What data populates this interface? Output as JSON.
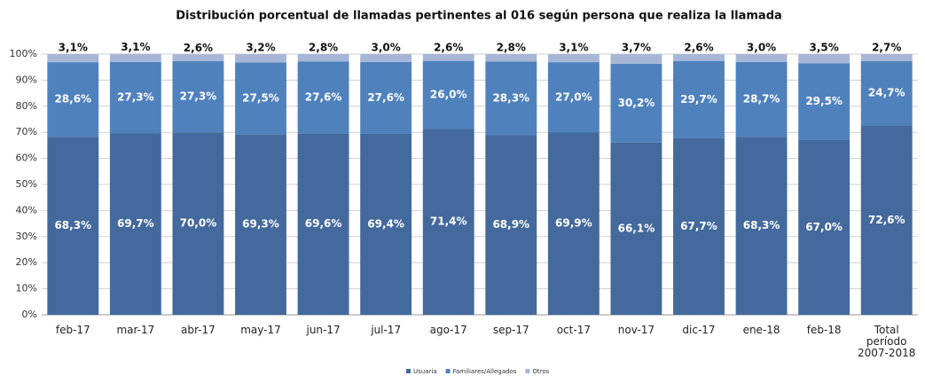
{
  "chart_data": {
    "type": "stacked_bar",
    "title": "Distribución porcentual de llamadas  pertinentes al 016 según persona que  realiza la llamada",
    "categories": [
      "feb-17",
      "mar-17",
      "abr-17",
      "may-17",
      "jun-17",
      "jul-17",
      "ago-17",
      "sep-17",
      "oct-17",
      "nov-17",
      "dic-17",
      "ene-18",
      "feb-18",
      "Total período 2007-2018"
    ],
    "series": [
      {
        "name": "Usuaria",
        "color": "#44699c",
        "values": [
          68.3,
          69.7,
          70.0,
          69.3,
          69.6,
          69.4,
          71.4,
          68.9,
          69.9,
          66.1,
          67.7,
          68.3,
          67.0,
          72.6
        ],
        "value_labels": [
          "68,3%",
          "69,7%",
          "70,0%",
          "69,3%",
          "69,6%",
          "69,4%",
          "71,4%",
          "68,9%",
          "69,9%",
          "66,1%",
          "67,7%",
          "68,3%",
          "67,0%",
          "72,6%"
        ]
      },
      {
        "name": "Familiares/Allegados",
        "color": "#4f81bd",
        "values": [
          28.6,
          27.3,
          27.3,
          27.5,
          27.6,
          27.6,
          26.0,
          28.3,
          27.0,
          30.2,
          29.7,
          28.7,
          29.5,
          24.7
        ],
        "value_labels": [
          "28,6%",
          "27,3%",
          "27,3%",
          "27,5%",
          "27,6%",
          "27,6%",
          "26,0%",
          "28,3%",
          "27,0%",
          "30,2%",
          "29,7%",
          "28,7%",
          "29,5%",
          "24,7%"
        ]
      },
      {
        "name": "Otros",
        "color": "#a7b6d6",
        "values": [
          3.1,
          3.1,
          2.6,
          3.2,
          2.8,
          3.0,
          2.6,
          2.8,
          3.1,
          3.7,
          2.6,
          3.0,
          3.5,
          2.7
        ],
        "value_labels": [
          "3,1%",
          "3,1%",
          "2,6%",
          "3,2%",
          "2,8%",
          "3,0%",
          "2,6%",
          "2,8%",
          "3,1%",
          "3,7%",
          "2,6%",
          "3,0%",
          "3,5%",
          "2,7%"
        ]
      }
    ],
    "ylim": [
      0,
      100
    ],
    "yticks": [
      {
        "value": 0,
        "label": "0%"
      },
      {
        "value": 10,
        "label": "10%"
      },
      {
        "value": 20,
        "label": "20%"
      },
      {
        "value": 30,
        "label": "30%"
      },
      {
        "value": 40,
        "label": "40%"
      },
      {
        "value": 50,
        "label": "50%"
      },
      {
        "value": 60,
        "label": "60%"
      },
      {
        "value": 70,
        "label": "70%"
      },
      {
        "value": 80,
        "label": "80%"
      },
      {
        "value": 90,
        "label": "90%"
      },
      {
        "value": 100,
        "label": "100%"
      }
    ],
    "grid": true,
    "legend": "bottom"
  }
}
